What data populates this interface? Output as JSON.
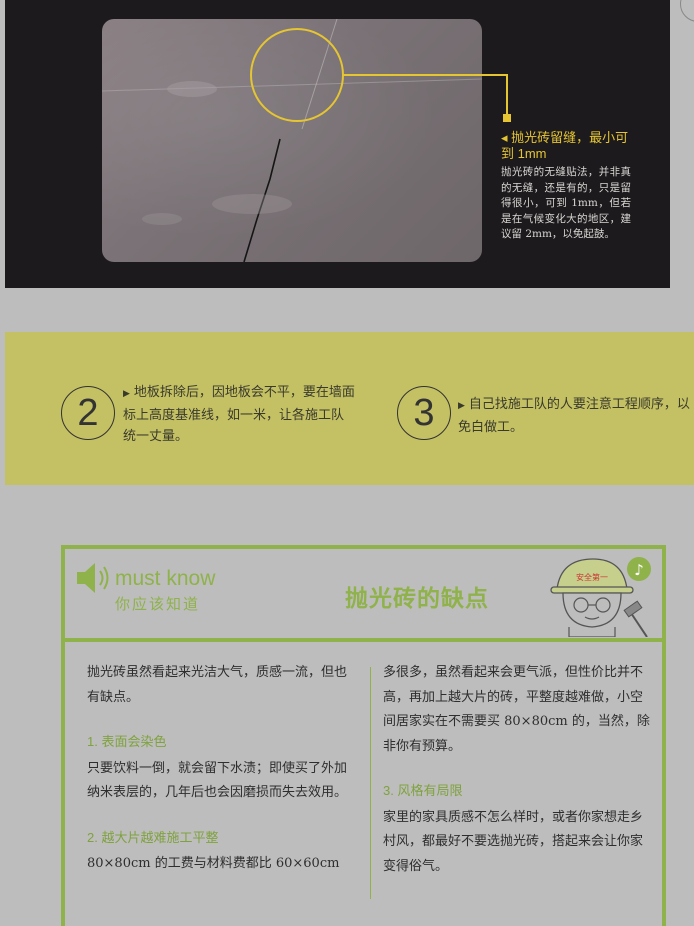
{
  "photo_note": {
    "title": "◂ 抛光砖留缝，最小可到 1mm",
    "body": "抛光砖的无缝贴法，并非真的无缝，还是有的，只是留得很小，可到 1mm，但若是在气候变化大的地区，建议留 2mm，以免起鼓。"
  },
  "steps": [
    {
      "number": "2",
      "text": "地板拆除后，因地板会不平，要在墙面标上高度基准线，如一米，让各施工队统一丈量。"
    },
    {
      "number": "3",
      "text": "自己找施工队的人要注意工程顺序，以免白做工。"
    }
  ],
  "must_know": {
    "label_en": "must know",
    "label_cn": "你应该知道",
    "title": "抛光砖的缺点",
    "mascot_hat": "安全第一",
    "intro": "抛光砖虽然看起来光洁大气，质感一流，但也有缺点。",
    "sections": [
      {
        "heading": "1. 表面会染色",
        "body": "只要饮料一倒，就会留下水渍；即使买了外加纳米表层的，几年后也会因磨损而失去效用。"
      },
      {
        "heading": "2. 越大片越难施工平整",
        "body": "80×80cm 的工费与材料费都比 60×60cm"
      },
      {
        "heading": "",
        "body": "多很多，虽然看起来会更气派，但性价比并不高，再加上越大片的砖，平整度越难做，小空间居家实在不需要买 80×80cm 的，当然，除非你有预算。"
      },
      {
        "heading": "3. 风格有局限",
        "body": "家里的家具质感不怎么样时，或者你家想走乡村风，都最好不要选抛光砖，搭起来会让你家变得俗气。"
      }
    ]
  },
  "colors": {
    "accent_green": "#8fb24a",
    "band_yellow": "#c4c064",
    "note_yellow": "#e5c531"
  }
}
